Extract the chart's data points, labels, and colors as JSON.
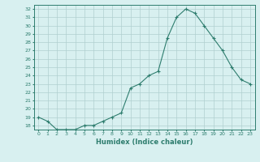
{
  "x": [
    0,
    1,
    2,
    3,
    4,
    5,
    6,
    7,
    8,
    9,
    10,
    11,
    12,
    13,
    14,
    15,
    16,
    17,
    18,
    19,
    20,
    21,
    22,
    23
  ],
  "y": [
    19.0,
    18.5,
    17.5,
    17.5,
    17.5,
    18.0,
    18.0,
    18.5,
    19.0,
    19.5,
    22.5,
    23.0,
    24.0,
    24.5,
    28.5,
    31.0,
    32.0,
    31.5,
    30.0,
    28.5,
    27.0,
    25.0,
    23.5,
    23.0
  ],
  "xlabel": "Humidex (Indice chaleur)",
  "ylim": [
    17.5,
    32.5
  ],
  "xlim": [
    -0.5,
    23.5
  ],
  "yticks": [
    18,
    19,
    20,
    21,
    22,
    23,
    24,
    25,
    26,
    27,
    28,
    29,
    30,
    31,
    32
  ],
  "xticks": [
    0,
    1,
    2,
    3,
    4,
    5,
    6,
    7,
    8,
    9,
    10,
    11,
    12,
    13,
    14,
    15,
    16,
    17,
    18,
    19,
    20,
    21,
    22,
    23
  ],
  "line_color": "#2e7d6e",
  "marker": "+",
  "bg_color": "#d8f0f0",
  "grid_color": "#b0d0d0"
}
